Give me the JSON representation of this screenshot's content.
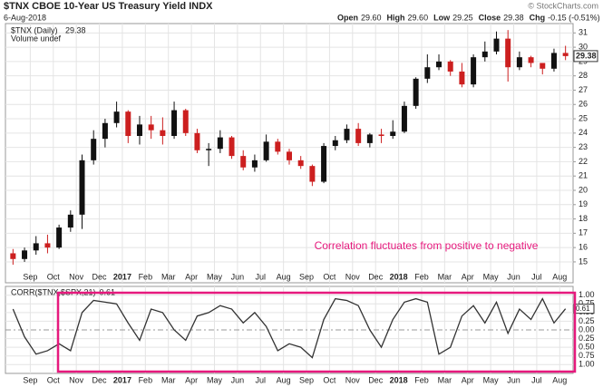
{
  "chart_data": [
    {
      "type": "candlestick",
      "title": "$TNX CBOE 10-Year US Treasury Yield INDX",
      "date": "6-Aug-2018",
      "credit": "© StockCharts.com",
      "header": [
        {
          "label": "Open",
          "value": "29.60"
        },
        {
          "label": "High",
          "value": "29.60"
        },
        {
          "label": "Low",
          "value": "29.25"
        },
        {
          "label": "Close",
          "value": "29.38"
        },
        {
          "label": "Chg",
          "value": "-0.15 (-0.51%)"
        }
      ],
      "legend": [
        "$TNX (Daily)",
        "Volume undef"
      ],
      "annotation": "Correlation fluctuates from positive to negative",
      "annotation_color": "#e6197d",
      "up_color": "#111111",
      "down_color": "#cc1f1f",
      "categories": [
        null,
        null,
        "Sep",
        null,
        "Oct",
        null,
        "Nov",
        null,
        "Dec",
        null,
        "2017",
        null,
        "Feb",
        null,
        "Mar",
        null,
        "Apr",
        null,
        "May",
        null,
        "Jun",
        null,
        "Jul",
        null,
        "Aug",
        null,
        "Sep",
        null,
        "Oct",
        null,
        "Nov",
        null,
        "Dec",
        null,
        "2018",
        null,
        "Feb",
        null,
        "Mar",
        null,
        "Apr",
        null,
        "May",
        null,
        "Jun",
        null,
        "Jul",
        null,
        "Aug"
      ],
      "open": [
        15.6,
        15.2,
        15.8,
        16.3,
        16.0,
        17.4,
        18.3,
        22.1,
        23.6,
        24.7,
        25.5,
        23.8,
        24.6,
        24.2,
        23.8,
        25.6,
        24.0,
        22.8,
        22.9,
        23.7,
        22.4,
        21.6,
        22.1,
        23.4,
        22.7,
        22.1,
        21.7,
        20.6,
        23.1,
        23.5,
        24.3,
        23.3,
        23.9,
        23.8,
        24.1,
        25.9,
        27.8,
        28.6,
        29.0,
        28.3,
        27.4,
        29.3,
        29.7,
        30.6,
        28.6,
        29.3,
        28.9,
        28.5,
        29.6
      ],
      "high": [
        15.9,
        16.0,
        16.8,
        16.9,
        17.6,
        18.6,
        22.5,
        24.2,
        25.0,
        26.2,
        25.6,
        25.2,
        25.2,
        25.1,
        26.2,
        25.7,
        24.3,
        23.3,
        24.2,
        23.8,
        22.8,
        22.5,
        23.9,
        23.6,
        22.9,
        22.4,
        21.8,
        23.3,
        23.8,
        24.6,
        24.7,
        24.0,
        24.3,
        24.9,
        26.2,
        27.9,
        29.5,
        29.5,
        29.1,
        28.9,
        29.5,
        30.4,
        31.1,
        31.2,
        29.7,
        29.4,
        28.9,
        29.9,
        30.1
      ],
      "low": [
        14.8,
        15.0,
        15.5,
        15.6,
        15.9,
        17.1,
        17.3,
        21.8,
        23.0,
        24.4,
        23.3,
        23.2,
        23.6,
        23.2,
        23.6,
        23.8,
        22.6,
        21.7,
        22.6,
        22.2,
        21.4,
        21.3,
        22.0,
        22.5,
        21.8,
        21.5,
        20.3,
        20.5,
        22.8,
        23.3,
        23.1,
        23.0,
        23.3,
        23.6,
        24.0,
        25.7,
        27.5,
        28.4,
        28.0,
        27.2,
        27.2,
        29.0,
        29.5,
        27.6,
        28.4,
        28.6,
        28.1,
        28.3,
        29.1
      ],
      "close": [
        15.2,
        15.8,
        16.3,
        16.0,
        17.4,
        18.3,
        22.1,
        23.6,
        24.7,
        25.5,
        23.8,
        24.6,
        24.2,
        23.8,
        25.6,
        24.0,
        22.8,
        22.9,
        23.7,
        22.4,
        21.6,
        22.1,
        23.4,
        22.7,
        22.1,
        21.7,
        20.6,
        23.1,
        23.5,
        24.3,
        23.3,
        23.9,
        23.8,
        24.1,
        25.9,
        27.8,
        28.6,
        29.0,
        28.3,
        27.4,
        29.3,
        29.7,
        30.6,
        28.6,
        29.3,
        28.9,
        28.5,
        29.6,
        29.38
      ],
      "ylim": [
        14.3,
        31.4
      ],
      "yticks": [
        15,
        16,
        17,
        18,
        19,
        20,
        21,
        22,
        23,
        24,
        25,
        26,
        27,
        28,
        29,
        30,
        31
      ],
      "grid": true
    },
    {
      "type": "line",
      "series": [
        {
          "name": "CORR($TNX,$SPX,21)",
          "color": "#333333",
          "values": [
            0.6,
            -0.2,
            -0.7,
            -0.6,
            -0.4,
            -0.6,
            0.5,
            0.85,
            0.8,
            0.75,
            0.2,
            -0.3,
            0.6,
            0.5,
            0.0,
            -0.3,
            0.4,
            0.5,
            0.7,
            0.6,
            0.2,
            0.5,
            0.1,
            -0.6,
            -0.4,
            -0.5,
            -0.8,
            0.3,
            0.9,
            0.85,
            0.7,
            0.0,
            -0.5,
            0.3,
            0.8,
            0.9,
            0.8,
            -0.7,
            -0.5,
            0.4,
            0.7,
            0.2,
            0.8,
            -0.1,
            0.6,
            0.3,
            0.9,
            0.2,
            0.61
          ]
        }
      ],
      "highlight_color": "#e6197d",
      "ylim": [
        -1.15,
        1.15
      ],
      "yticks": [
        {
          "value": 1,
          "label": "1.00"
        },
        {
          "value": 0.75,
          "label": "0.75"
        },
        {
          "value": 0.5,
          "label": "0.50"
        },
        {
          "value": 0.25,
          "label": "0.25"
        },
        {
          "value": 0,
          "label": "0.00"
        },
        {
          "value": -0.25,
          "label": "0.25"
        },
        {
          "value": -0.5,
          "label": "0.50"
        },
        {
          "value": -0.75,
          "label": "0.75"
        },
        {
          "value": -1,
          "label": "1.00"
        }
      ],
      "grid": true
    }
  ]
}
